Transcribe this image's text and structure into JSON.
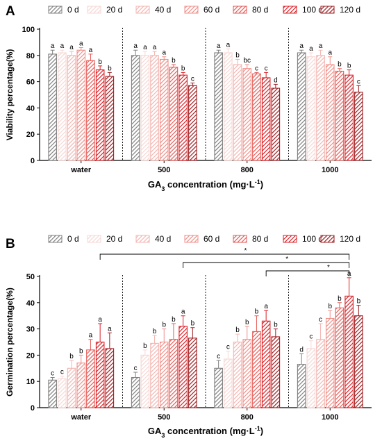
{
  "colors": [
    "#7f7f7f",
    "#f6d7d4",
    "#f3b5b0",
    "#ee8f88",
    "#e55a56",
    "#d91f25",
    "#9e1d20"
  ],
  "chart_data": [
    {
      "type": "bar",
      "panel_label": "A",
      "ylabel": "Viability percentage(%)",
      "xlabel_main": "GA",
      "xlabel_sub": "3",
      "xlabel_rest": " concentration (mg·L",
      "xlabel_sup": "-1",
      "xlabel_end": ")",
      "ylim": [
        0,
        100
      ],
      "yticks": [
        "0",
        "20",
        "40",
        "60",
        "80",
        "100"
      ],
      "categories": [
        "water",
        "500",
        "800",
        "1000"
      ],
      "legend": [
        "0 d",
        "20 d",
        "40 d",
        "60 d",
        "80 d",
        "100 d",
        "120 d"
      ],
      "series": [
        {
          "name": "0 d",
          "values": [
            81,
            80,
            82,
            82
          ],
          "errors": [
            3,
            4,
            2,
            2
          ],
          "letters": [
            "a",
            "a",
            "a",
            "a"
          ]
        },
        {
          "name": "20 d",
          "values": [
            82,
            80,
            82,
            79
          ],
          "errors": [
            2,
            3,
            3,
            3
          ],
          "letters": [
            "a",
            "a",
            "a",
            "a"
          ]
        },
        {
          "name": "40 d",
          "values": [
            80,
            80,
            73,
            80
          ],
          "errors": [
            3,
            3,
            4,
            4
          ],
          "letters": [
            "a",
            "a",
            "b",
            "a"
          ]
        },
        {
          "name": "60 d",
          "values": [
            84,
            77,
            70,
            73
          ],
          "errors": [
            2,
            2,
            3,
            6
          ],
          "letters": [
            "a",
            "a",
            "bc",
            "a"
          ]
        },
        {
          "name": "80 d",
          "values": [
            76,
            71,
            66,
            68
          ],
          "errors": [
            5,
            2,
            1,
            2
          ],
          "letters": [
            "a",
            "b",
            "c",
            "b"
          ]
        },
        {
          "name": "100 d",
          "values": [
            69,
            65,
            63,
            65
          ],
          "errors": [
            3,
            2,
            4,
            4
          ],
          "letters": [
            "b",
            "b",
            "c",
            "b"
          ]
        },
        {
          "name": "120 d",
          "values": [
            64,
            57,
            55,
            52
          ],
          "errors": [
            3,
            2,
            3,
            5
          ],
          "letters": [
            "b",
            "c",
            "d",
            "c"
          ]
        }
      ],
      "brackets": []
    },
    {
      "type": "bar",
      "panel_label": "B",
      "ylabel": "Germination percentage(%)",
      "xlabel_main": "GA",
      "xlabel_sub": "3",
      "xlabel_rest": " concentration (mg·L",
      "xlabel_sup": "-1",
      "xlabel_end": ")",
      "ylim": [
        0,
        50
      ],
      "yticks": [
        "0",
        "10",
        "20",
        "30",
        "40",
        "50"
      ],
      "categories": [
        "water",
        "500",
        "800",
        "1000"
      ],
      "legend": [
        "0 d",
        "20 d",
        "40 d",
        "60 d",
        "80 d",
        "100 d",
        "120 d"
      ],
      "series": [
        {
          "name": "0 d",
          "values": [
            10.5,
            11.5,
            15,
            16.5
          ],
          "errors": [
            1,
            2,
            3,
            4
          ],
          "letters": [
            "c",
            "c",
            "c",
            "d"
          ]
        },
        {
          "name": "20 d",
          "values": [
            11,
            20,
            18.5,
            22.5
          ],
          "errors": [
            1,
            2,
            3,
            3
          ],
          "letters": [
            "c",
            "b",
            "c",
            "c"
          ]
        },
        {
          "name": "40 d",
          "values": [
            15,
            24.5,
            25,
            26
          ],
          "errors": [
            3,
            3,
            3,
            6
          ],
          "letters": [
            "b",
            "b",
            "b",
            "c"
          ]
        },
        {
          "name": "60 d",
          "values": [
            17,
            25,
            26,
            34
          ],
          "errors": [
            3,
            5,
            5,
            3
          ],
          "letters": [
            "b",
            "b",
            "b",
            "b"
          ]
        },
        {
          "name": "80 d",
          "values": [
            22,
            26,
            29,
            38
          ],
          "errors": [
            4,
            6,
            6,
            2
          ],
          "letters": [
            "a",
            "b",
            "b",
            "b"
          ]
        },
        {
          "name": "100 d",
          "values": [
            25,
            31,
            33,
            42.5
          ],
          "errors": [
            7,
            4,
            4,
            7
          ],
          "letters": [
            "a",
            "a",
            "a",
            "a"
          ]
        },
        {
          "name": "120 d",
          "values": [
            22.5,
            26.5,
            27,
            35
          ],
          "errors": [
            6,
            4,
            3,
            4
          ],
          "letters": [
            "a",
            "b",
            "b",
            "b"
          ]
        }
      ],
      "brackets": [
        {
          "label": "*",
          "from": 0,
          "to": 3
        },
        {
          "label": "*",
          "from": 1,
          "to": 3
        },
        {
          "label": "*",
          "from": 2,
          "to": 3
        }
      ]
    }
  ]
}
